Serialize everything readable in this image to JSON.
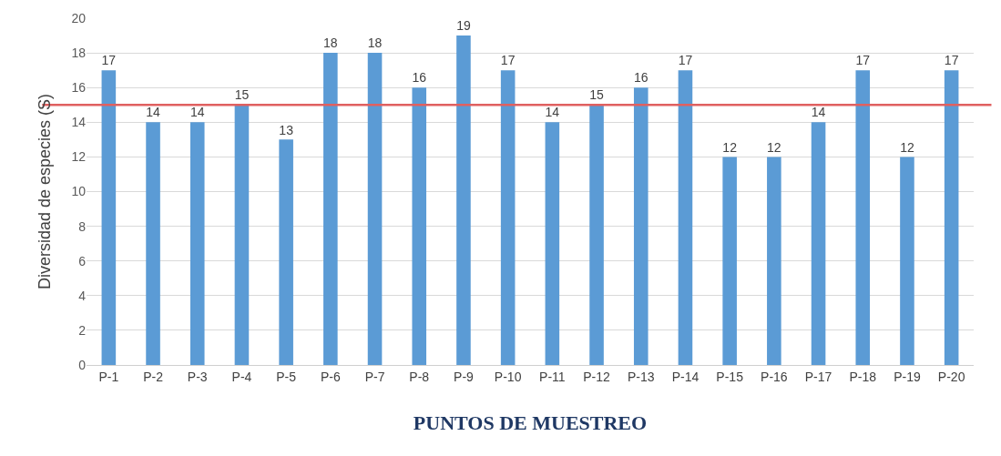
{
  "chart_data": {
    "type": "bar",
    "xlabel": "PUNTOS DE MUESTREO",
    "ylabel": "Diversidad de especies (S)",
    "categories": [
      "P-1",
      "P-2",
      "P-3",
      "P-4",
      "P-5",
      "P-6",
      "P-7",
      "P-8",
      "P-9",
      "P-10",
      "P-11",
      "P-12",
      "P-13",
      "P-14",
      "P-15",
      "P-16",
      "P-17",
      "P-18",
      "P-19",
      "P-20"
    ],
    "values": [
      17,
      14,
      14,
      15,
      13,
      18,
      18,
      16,
      19,
      17,
      14,
      15,
      16,
      17,
      12,
      12,
      14,
      17,
      12,
      17
    ],
    "color": "#5b9bd5",
    "ylim": [
      0,
      20
    ],
    "yticks": [
      0,
      2,
      4,
      6,
      8,
      10,
      12,
      14,
      16,
      18,
      20
    ],
    "grid": "y",
    "data_labels": true,
    "ref_lines": [
      {
        "axis": "y",
        "value": 15,
        "color": "#e06060"
      }
    ]
  }
}
